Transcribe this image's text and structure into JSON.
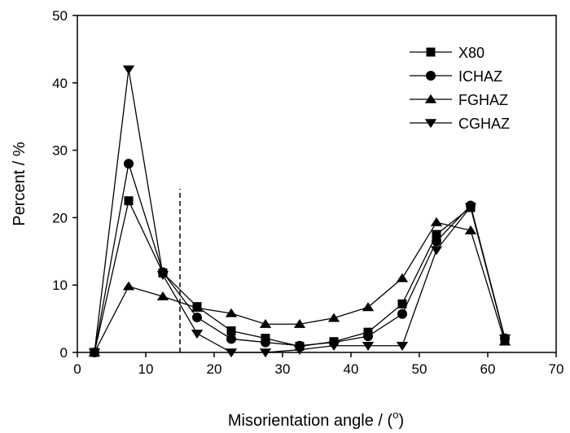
{
  "chart_data": {
    "type": "line",
    "xlabel": "Misorientation angle / (",
    "xlabel_sup": "o",
    "xlabel_tail": ")",
    "ylabel": "Percent / %",
    "xlim": [
      0,
      70
    ],
    "ylim": [
      0,
      50
    ],
    "xticks": [
      "0",
      "10",
      "20",
      "30",
      "40",
      "50",
      "60",
      "70"
    ],
    "yticks": [
      "0",
      "10",
      "20",
      "30",
      "40",
      "50"
    ],
    "grid": false,
    "legend_position": "top-right",
    "reference_line": {
      "x": 15,
      "style": "dashed"
    },
    "x": [
      2.5,
      7.5,
      12.5,
      17.5,
      22.5,
      27.5,
      32.5,
      37.5,
      42.5,
      47.5,
      52.5,
      57.5,
      62.5
    ],
    "series": [
      {
        "name": "X80",
        "marker": "square",
        "values": [
          0,
          22.5,
          11.8,
          6.8,
          3.2,
          2.1,
          0.9,
          1.6,
          3.0,
          7.2,
          17.5,
          21.5,
          2.0
        ]
      },
      {
        "name": "ICHAZ",
        "marker": "circle",
        "values": [
          0,
          28.0,
          11.9,
          5.2,
          2.0,
          1.5,
          1.0,
          1.5,
          2.4,
          5.7,
          16.5,
          21.8,
          2.1
        ]
      },
      {
        "name": "FGHAZ",
        "marker": "triangle-up",
        "values": [
          0,
          9.8,
          8.3,
          6.6,
          5.8,
          4.2,
          4.2,
          5.1,
          6.7,
          11.0,
          19.3,
          18.1,
          1.6
        ]
      },
      {
        "name": "CGHAZ",
        "marker": "triangle-down",
        "values": [
          0,
          42.0,
          11.5,
          2.8,
          0,
          0,
          0.4,
          1.0,
          1.0,
          1.0,
          15.2,
          21.6,
          2.1
        ]
      }
    ]
  }
}
